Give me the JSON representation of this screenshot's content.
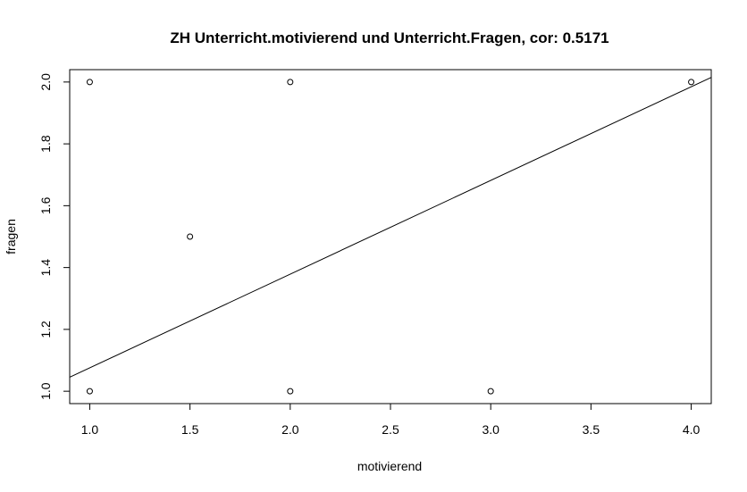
{
  "chart_data": {
    "type": "scatter",
    "title": "ZH Unterricht.motivierend und Unterricht.Fragen, cor: 0.5171",
    "xlabel": "motivierend",
    "ylabel": "fragen",
    "xlim": [
      0.9,
      4.1
    ],
    "ylim": [
      0.96,
      2.04
    ],
    "x_ticks": [
      "1.0",
      "1.5",
      "2.0",
      "2.5",
      "3.0",
      "3.5",
      "4.0"
    ],
    "y_ticks": [
      "1.0",
      "1.2",
      "1.4",
      "1.6",
      "1.8",
      "2.0"
    ],
    "points": [
      {
        "x": 1.0,
        "y": 2.0
      },
      {
        "x": 1.0,
        "y": 1.0
      },
      {
        "x": 1.5,
        "y": 1.5
      },
      {
        "x": 2.0,
        "y": 2.0
      },
      {
        "x": 2.0,
        "y": 1.0
      },
      {
        "x": 3.0,
        "y": 1.0
      },
      {
        "x": 4.0,
        "y": 2.0
      }
    ],
    "regression_line": {
      "intercept": 0.7727,
      "slope": 0.303
    },
    "grid": false,
    "legend": "none"
  }
}
